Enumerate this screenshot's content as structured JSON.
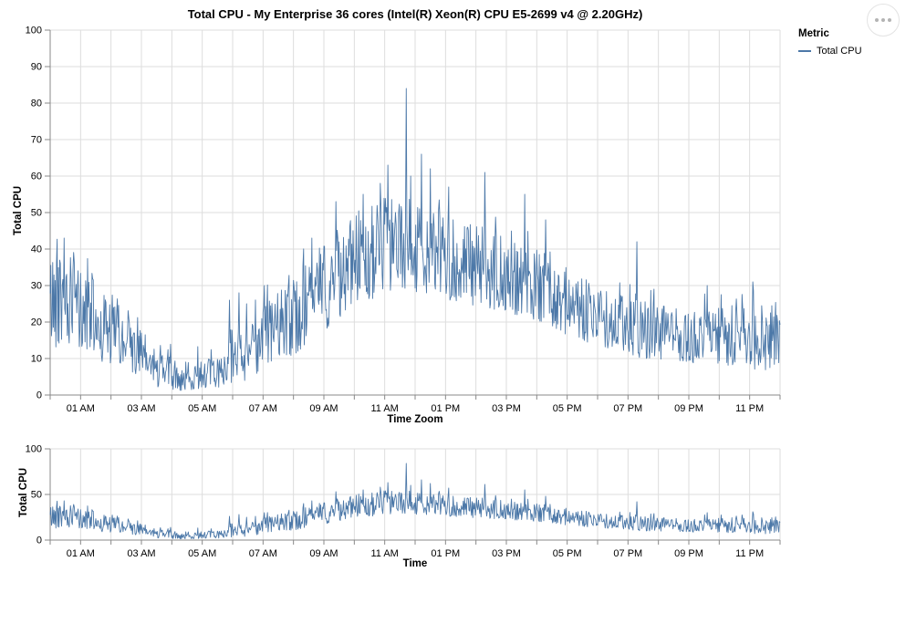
{
  "header": {
    "title": "Total CPU - My Enterprise 36 cores (Intel(R) Xeon(R) CPU E5-2699 v4 @ 2.20GHz)"
  },
  "legend": {
    "title": "Metric",
    "items": [
      {
        "label": "Total CPU",
        "color": "#4c78a8"
      }
    ]
  },
  "actions_menu": {
    "icon": "ellipsis",
    "dots": 3
  },
  "chart_data": {
    "type": "line",
    "title": "Total CPU - My Enterprise 36 cores (Intel(R) Xeon(R) CPU E5-2699 v4 @ 2.20GHz)",
    "series": [
      {
        "name": "Total CPU",
        "color": "#4c78a8"
      }
    ],
    "grid": true,
    "legend_position": "right",
    "main": {
      "xlabel": "Time Zoom",
      "ylabel": "Total CPU",
      "ylim": [
        0,
        100
      ],
      "y_ticks": [
        0,
        10,
        20,
        30,
        40,
        50,
        60,
        70,
        80,
        90,
        100
      ]
    },
    "overview": {
      "xlabel": "Time",
      "ylabel": "Total CPU",
      "ylim": [
        0,
        100
      ],
      "y_ticks": [
        0,
        50,
        100
      ]
    },
    "x_hours_range": [
      0,
      24
    ],
    "x_tick_every_hours": 1,
    "x_label_hours": [
      1,
      3,
      5,
      7,
      9,
      11,
      13,
      15,
      17,
      19,
      21,
      23
    ],
    "x_label_texts": [
      "01 AM",
      "03 AM",
      "05 AM",
      "07 AM",
      "09 AM",
      "11 AM",
      "01 PM",
      "03 PM",
      "05 PM",
      "07 PM",
      "09 PM",
      "11 PM"
    ],
    "envelope": {
      "step_hours": 0.5,
      "low": [
        12,
        15,
        11,
        9,
        8,
        6,
        4,
        2,
        1,
        1,
        2,
        2,
        3,
        4,
        7,
        9,
        11,
        14,
        17,
        21,
        24,
        26,
        28,
        29,
        28,
        27,
        26,
        25,
        24,
        23,
        22,
        22,
        20,
        18,
        16,
        15,
        13,
        12,
        11,
        10,
        10,
        9,
        9,
        8,
        8,
        8,
        7,
        6,
        8
      ],
      "high": [
        40,
        43,
        36,
        31,
        28,
        23,
        18,
        13,
        10,
        9,
        10,
        10,
        16,
        20,
        25,
        28,
        32,
        38,
        42,
        46,
        50,
        52,
        54,
        55,
        54,
        52,
        50,
        48,
        47,
        45,
        44,
        42,
        40,
        38,
        36,
        33,
        30,
        28,
        27,
        26,
        25,
        24,
        24,
        23,
        24,
        25,
        24,
        25,
        26
      ]
    },
    "spikes": [
      {
        "t": 0.45,
        "v": 43
      },
      {
        "t": 5.9,
        "v": 26
      },
      {
        "t": 6.2,
        "v": 28
      },
      {
        "t": 6.45,
        "v": 25
      },
      {
        "t": 7.05,
        "v": 30
      },
      {
        "t": 8.6,
        "v": 43
      },
      {
        "t": 9.4,
        "v": 53
      },
      {
        "t": 10.3,
        "v": 55
      },
      {
        "t": 10.85,
        "v": 58
      },
      {
        "t": 11.1,
        "v": 63
      },
      {
        "t": 11.7,
        "v": 84
      },
      {
        "t": 11.85,
        "v": 60
      },
      {
        "t": 12.2,
        "v": 66
      },
      {
        "t": 12.5,
        "v": 62
      },
      {
        "t": 13.1,
        "v": 57
      },
      {
        "t": 14.3,
        "v": 61
      },
      {
        "t": 15.6,
        "v": 55
      },
      {
        "t": 16.3,
        "v": 48
      },
      {
        "t": 19.3,
        "v": 42
      },
      {
        "t": 21.6,
        "v": 30
      },
      {
        "t": 23.1,
        "v": 31
      }
    ],
    "samples_per_hour": 48,
    "noise_seed": 42,
    "colors": {
      "gridline": "#dddddd",
      "axis": "#888888",
      "label": "#000000"
    }
  }
}
